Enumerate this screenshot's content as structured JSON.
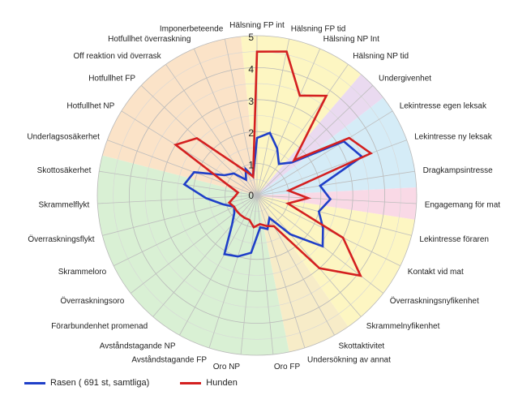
{
  "chart_data": {
    "type": "radar",
    "r_range": [
      0,
      5
    ],
    "r_ticks": [
      "0",
      "1",
      "2",
      "3",
      "4",
      "5"
    ],
    "categories": [
      "Hälsning FP int",
      "Hälsning FP tid",
      "Hälsning NP Int",
      "Hälsning NP tid",
      "Undergivenhet",
      "Lekintresse egen leksak",
      "Lekintresse ny leksak",
      "Dragkampsintresse",
      "Engagemang för mat",
      "Lekintresse föraren",
      "Kontakt vid mat",
      "Överraskningsnyfikenhet",
      "Skrammelnyfikenhet",
      "Skottaktivitet",
      "Undersökning av annat",
      "Oro FP",
      "Oro NP",
      "Avståndstagande FP",
      "Avståndstagande NP",
      "Förarbundenhet promenad",
      "Överraskningsoro",
      "Skrammeloro",
      "Överraskningsflykt",
      "Skrammelflykt",
      "Skottosäkerhet",
      "Underlagsosäkerhet",
      "Hotfullhet NP",
      "Hotfullhet FP",
      "Off reaktion vid överrask",
      "Hotfullhet överraskning",
      "Imponerbeteende"
    ],
    "series": [
      {
        "name": "Rasen ( 691 st, samtliga)",
        "color": "#1f3fc8",
        "values": [
          1.8,
          2.0,
          1.6,
          1.2,
          1.5,
          3.2,
          3.5,
          2.0,
          2.3,
          2.0,
          2.3,
          2.6,
          1.6,
          0.8,
          1.1,
          1.0,
          1.8,
          2.0,
          2.1,
          1.2,
          0.9,
          0.8,
          1.1,
          1.6,
          2.3,
          2.1,
          1.2,
          1.0,
          0.6,
          0.9,
          0.6
        ]
      },
      {
        "name": "Hunden",
        "color": "#d42020",
        "values": [
          4.5,
          4.6,
          3.4,
          3.8,
          1.6,
          3.4,
          3.8,
          1.0,
          1.6,
          1.0,
          3.0,
          4.1,
          3.0,
          1.1,
          1.0,
          0.9,
          1.0,
          0.8,
          0.8,
          0.8,
          0.8,
          0.8,
          0.9,
          0.7,
          0.6,
          1.0,
          3.0,
          2.6,
          1.2,
          0.8,
          0.6
        ]
      }
    ],
    "sectors": [
      {
        "from": 0,
        "to": 4,
        "color": "#fdf6c2"
      },
      {
        "from": 4,
        "to": 5,
        "color": "#eadaf0"
      },
      {
        "from": 5,
        "to": 8,
        "color": "#d5ecf7"
      },
      {
        "from": 8,
        "to": 9,
        "color": "#f9d9e6"
      },
      {
        "from": 9,
        "to": 13,
        "color": "#fdf6c2"
      },
      {
        "from": 13,
        "to": 15,
        "color": "#f7ecc8"
      },
      {
        "from": 15,
        "to": 25,
        "color": "#d9f0d4"
      },
      {
        "from": 25,
        "to": 31,
        "color": "#fbe3c8"
      }
    ],
    "legend_position": "bottom-left",
    "grid": true
  }
}
